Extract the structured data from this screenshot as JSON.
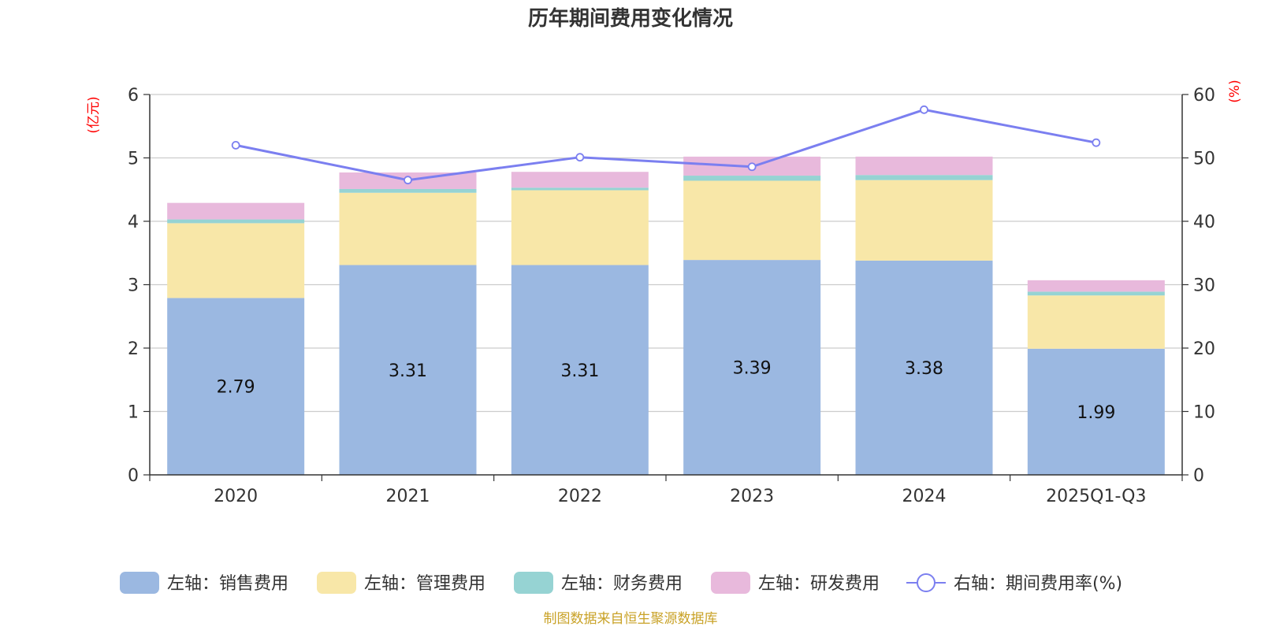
{
  "chart_data": {
    "type": "bar",
    "stacked": true,
    "title": "历年期间费用变化情况",
    "categories": [
      "2020",
      "2021",
      "2022",
      "2023",
      "2024",
      "2025Q1-Q3"
    ],
    "left_axis": {
      "unit": "(亿元)",
      "ylim": [
        0,
        6
      ],
      "ticks": [
        "0",
        "1",
        "2",
        "3",
        "4",
        "5",
        "6"
      ]
    },
    "right_axis": {
      "unit": "(%)",
      "ylim": [
        0,
        60
      ],
      "ticks": [
        "0",
        "10",
        "20",
        "30",
        "40",
        "50",
        "60"
      ]
    },
    "series": [
      {
        "name": "左轴：销售费用",
        "axis": "left",
        "color": "#9bb8e1",
        "values": [
          2.79,
          3.31,
          3.31,
          3.39,
          3.38,
          1.99
        ],
        "labels": [
          "2.79",
          "3.31",
          "3.31",
          "3.39",
          "3.38",
          "1.99"
        ]
      },
      {
        "name": "左轴：管理费用",
        "axis": "left",
        "color": "#f8e7a8",
        "values": [
          1.18,
          1.14,
          1.18,
          1.25,
          1.27,
          0.84
        ]
      },
      {
        "name": "左轴：财务费用",
        "axis": "left",
        "color": "#96d3d3",
        "values": [
          0.06,
          0.06,
          0.04,
          0.08,
          0.08,
          0.06
        ]
      },
      {
        "name": "左轴：研发费用",
        "axis": "left",
        "color": "#e8b9dc",
        "values": [
          0.26,
          0.26,
          0.25,
          0.3,
          0.29,
          0.18
        ]
      },
      {
        "name": "右轴：期间费用率(%)",
        "axis": "right",
        "type": "line",
        "color": "#7b7ff0",
        "values": [
          52.0,
          46.5,
          50.1,
          48.6,
          57.6,
          52.4
        ]
      }
    ],
    "source": "制图数据来自恒生聚源数据库"
  }
}
